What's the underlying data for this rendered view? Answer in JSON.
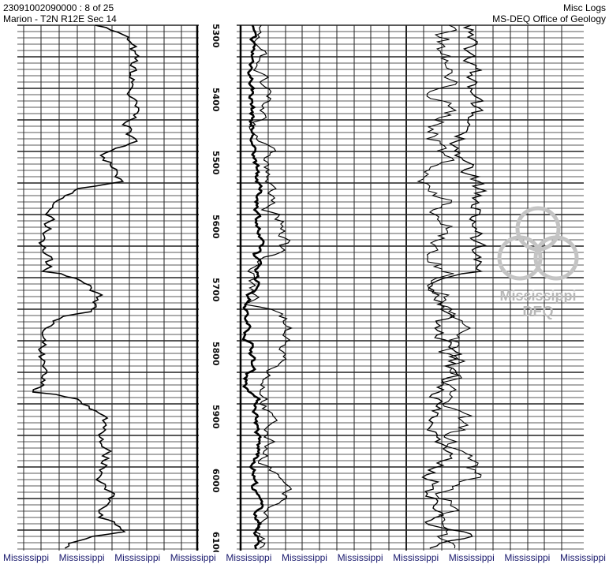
{
  "header": {
    "well_id_page": "23091002090000 : 8 of 25",
    "location": "Marion - T2N R12E Sec 14",
    "log_type": "Misc Logs",
    "agency": "MS-DEQ Office of Geology"
  },
  "depth_labels": [
    "5300",
    "5400",
    "5500",
    "5600",
    "5700",
    "5800",
    "5900",
    "6000",
    "6100"
  ],
  "watermark": {
    "line1": "Mississippi",
    "line2": "DEQ"
  },
  "footer": [
    "Mississippi",
    "Mississippi",
    "Mississippi",
    "Mississippi",
    "Mississippi",
    "Mississippi",
    "Mississippi",
    "Mississippi",
    "Mississippi",
    "Mississippi",
    "Mississippi"
  ],
  "colors": {
    "footer_text": "#1a1a6e",
    "watermark": "#b9b9b9"
  }
}
